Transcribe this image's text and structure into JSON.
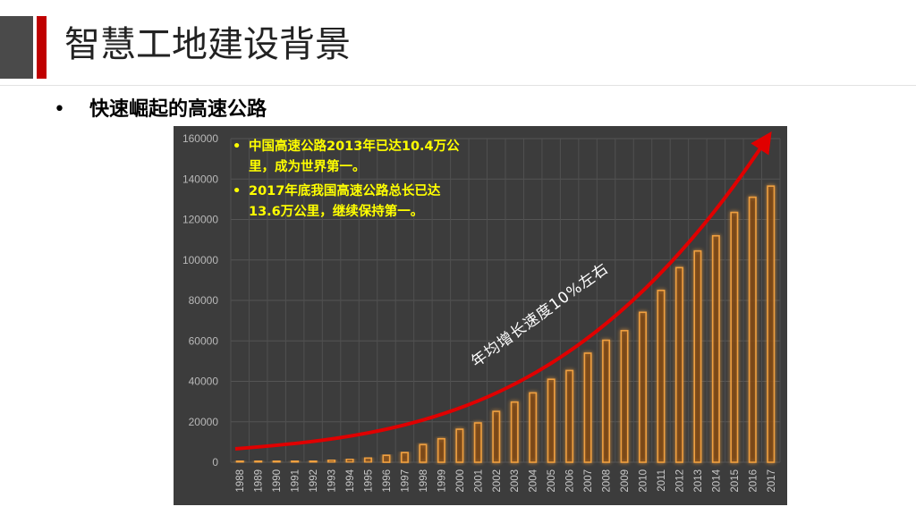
{
  "header": {
    "title": "智慧工地建设背景",
    "accent_color": "#c00000"
  },
  "section": {
    "bullet": "•",
    "subtitle": "快速崛起的高速公路"
  },
  "chart_data": {
    "type": "bar",
    "title": "",
    "xlabel": "",
    "ylabel": "",
    "ylim": [
      0,
      160000
    ],
    "yticks": [
      0,
      20000,
      40000,
      60000,
      80000,
      100000,
      120000,
      140000,
      160000
    ],
    "grid": true,
    "categories": [
      "1988",
      "1989",
      "1990",
      "1991",
      "1992",
      "1993",
      "1994",
      "1995",
      "1996",
      "1997",
      "1998",
      "1999",
      "2000",
      "2001",
      "2002",
      "2003",
      "2004",
      "2005",
      "2006",
      "2007",
      "2008",
      "2009",
      "2010",
      "2011",
      "2012",
      "2013",
      "2014",
      "2015",
      "2016",
      "2017"
    ],
    "values": [
      147,
      271,
      522,
      574,
      652,
      1145,
      1603,
      2141,
      3422,
      4771,
      8733,
      11605,
      16314,
      19437,
      25141,
      29745,
      34288,
      41005,
      45339,
      53913,
      60302,
      65055,
      74113,
      84946,
      96200,
      104438,
      111936,
      123500,
      131000,
      136500
    ],
    "bar_color": "#f0a040",
    "annotations": [
      "中国高速公路2013年已达10.4万公里，成为世界第一。",
      "2017年底我国高速公路总长已达13.6万公里，继续保持第一。"
    ],
    "trend_label": "年均增长速度10%左右",
    "trend_color": "#e00000"
  },
  "notes": {
    "bullet": "•",
    "line1a": "中国高速公路2013年已达10.4万公",
    "line1b": "里，成为世界第一。",
    "line2a": "2017年底我国高速公路总长已达",
    "line2b": "13.6万公里，继续保持第一。"
  }
}
